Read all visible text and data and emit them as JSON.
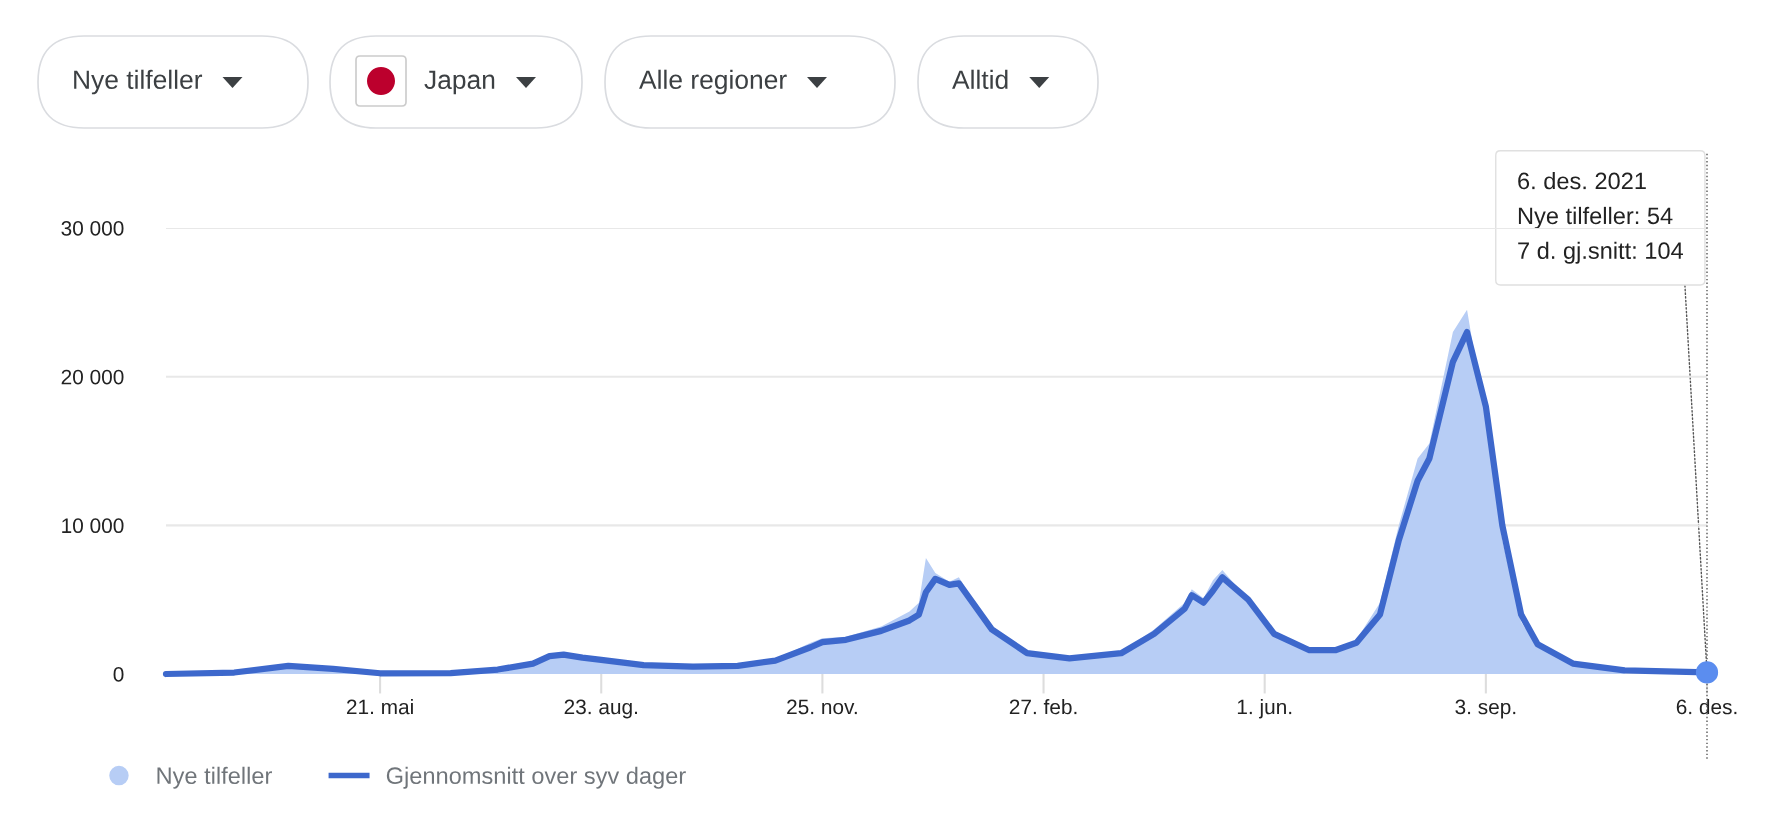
{
  "chart_data": {
    "type": "area",
    "x": [
      "2020-02-20",
      "2020-03-20",
      "2020-04-12",
      "2020-05-01",
      "2020-05-21",
      "2020-06-20",
      "2020-07-10",
      "2020-07-25",
      "2020-08-01",
      "2020-08-07",
      "2020-08-15",
      "2020-08-23",
      "2020-09-10",
      "2020-10-01",
      "2020-10-20",
      "2020-11-05",
      "2020-11-20",
      "2020-11-25",
      "2020-12-05",
      "2020-12-20",
      "2021-01-01",
      "2021-01-05",
      "2021-01-08",
      "2021-01-12",
      "2021-01-18",
      "2021-01-22",
      "2021-02-05",
      "2021-02-20",
      "2021-03-10",
      "2021-04-01",
      "2021-04-15",
      "2021-04-28",
      "2021-05-01",
      "2021-05-06",
      "2021-05-10",
      "2021-05-14",
      "2021-05-25",
      "2021-06-05",
      "2021-06-20",
      "2021-07-01",
      "2021-07-10",
      "2021-07-20",
      "2021-07-28",
      "2021-08-05",
      "2021-08-10",
      "2021-08-20",
      "2021-08-26",
      "2021-09-03",
      "2021-09-10",
      "2021-09-18",
      "2021-09-25",
      "2021-10-10",
      "2021-11-01",
      "2021-12-06"
    ],
    "series": [
      {
        "name": "Nye tilfeller",
        "color": "#b7cdf5",
        "values": [
          0,
          150,
          650,
          350,
          50,
          80,
          350,
          800,
          1400,
          1450,
          1100,
          950,
          600,
          500,
          600,
          1000,
          2100,
          2400,
          2500,
          3200,
          4200,
          4800,
          7800,
          6800,
          6200,
          6500,
          3000,
          1300,
          1100,
          1500,
          3000,
          4800,
          5700,
          5100,
          6300,
          7000,
          5000,
          2600,
          1500,
          1600,
          2300,
          4800,
          10000,
          14500,
          15500,
          23000,
          24500,
          17000,
          9000,
          3500,
          1800,
          600,
          250,
          null
        ]
      },
      {
        "name": "Gjennomsnitt over syv dager",
        "type": "line",
        "color": "#3d68cc",
        "values": [
          0,
          100,
          550,
          350,
          50,
          60,
          300,
          700,
          1200,
          1300,
          1100,
          950,
          600,
          500,
          550,
          900,
          1800,
          2150,
          2300,
          2900,
          3600,
          4000,
          5500,
          6400,
          6000,
          6100,
          3000,
          1400,
          1050,
          1400,
          2700,
          4400,
          5300,
          4800,
          5600,
          6500,
          5000,
          2700,
          1600,
          1600,
          2100,
          4000,
          9000,
          13000,
          14500,
          21000,
          23000,
          18000,
          10000,
          4000,
          2000,
          700,
          250,
          104
        ]
      }
    ],
    "xlim": [
      "2020-02-20",
      "2021-12-06"
    ],
    "xticks": [
      {
        "value": "2020-05-21",
        "label": "21. mai"
      },
      {
        "value": "2020-08-23",
        "label": "23. aug."
      },
      {
        "value": "2020-11-25",
        "label": "25. nov."
      },
      {
        "value": "2021-02-27",
        "label": "27. feb."
      },
      {
        "value": "2021-06-01",
        "label": "1. jun."
      },
      {
        "value": "2021-09-03",
        "label": "3. sep."
      },
      {
        "value": "2021-12-06",
        "label": "6. des."
      }
    ],
    "ylim": [
      0,
      30000
    ],
    "yticks": [
      {
        "value": 0,
        "label": "0"
      },
      {
        "value": 10000,
        "label": "10 000"
      },
      {
        "value": 20000,
        "label": "20 000"
      },
      {
        "value": 30000,
        "label": "30 000"
      }
    ],
    "grid": "y",
    "legend": "bottom left",
    "ref_lines": [
      {
        "axis": "x",
        "value": "2021-12-06",
        "label": null,
        "color": "#555555",
        "line_style": "dotted"
      }
    ],
    "annotations": [
      "Nye tilfeller",
      "Japan",
      "Alle regioner",
      "Alltid",
      {
        "text": "6. des. 2021\nNye tilfeller: 54\n7 d. gj.snitt: 104",
        "x": "2021-12-06",
        "y": 104
      }
    ]
  }
}
